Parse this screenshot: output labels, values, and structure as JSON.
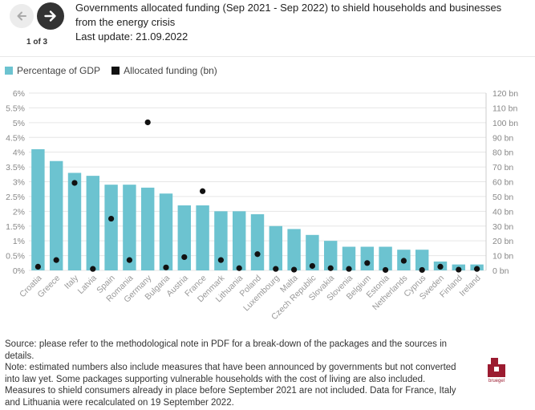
{
  "header": {
    "title_line1": "Governments allocated funding (Sep 2021 - Sep 2022) to shield households and businesses",
    "title_line2": "from the energy crisis",
    "last_update": "Last update: 21.09.2022",
    "pager": "1 of 3"
  },
  "legend": {
    "bar_label": "Percentage of GDP",
    "dot_label": "Allocated funding (bn)"
  },
  "colors": {
    "bar": "#6cc3d0",
    "dot": "#111111",
    "grid": "#e6e6e6",
    "logo": "#9b1b30"
  },
  "chart_data": {
    "type": "bar",
    "categories": [
      "Croatia",
      "Greece",
      "Italy",
      "Latvia",
      "Spain",
      "Romania",
      "Germany",
      "Bulgaria",
      "Austria",
      "France",
      "Denmark",
      "Lithuania",
      "Poland",
      "Luxembourg",
      "Malta",
      "Czech Republic",
      "Slovakia",
      "Slovenia",
      "Belgium",
      "Estonia",
      "Netherlands",
      "Cyprus",
      "Sweden",
      "Finland",
      "Ireland"
    ],
    "series": [
      {
        "name": "Percentage of GDP",
        "axis": "left",
        "values": [
          4.1,
          3.7,
          3.3,
          3.2,
          2.9,
          2.9,
          2.8,
          2.6,
          2.2,
          2.2,
          2.0,
          2.0,
          1.9,
          1.5,
          1.4,
          1.2,
          1.0,
          0.8,
          0.8,
          0.8,
          0.7,
          0.7,
          0.3,
          0.2,
          0.2
        ]
      },
      {
        "name": "Allocated funding (bn)",
        "axis": "right",
        "values": [
          2.5,
          7,
          59.2,
          1,
          35,
          7,
          100.2,
          2,
          9,
          53.6,
          7,
          1.5,
          11,
          1,
          0.5,
          3,
          1.5,
          1,
          5,
          0.3,
          6.5,
          0.3,
          2.5,
          0.5,
          1
        ]
      }
    ],
    "y_left_ticks": [
      "0%",
      "0.5%",
      "1%",
      "1.5%",
      "2%",
      "2.5%",
      "3%",
      "3.5%",
      "4%",
      "4.5%",
      "5%",
      "5.5%",
      "6%"
    ],
    "y_right_ticks": [
      "0 bn",
      "10 bn",
      "20 bn",
      "30 bn",
      "40 bn",
      "50 bn",
      "60 bn",
      "70 bn",
      "80 bn",
      "90 bn",
      "100 bn",
      "110 bn",
      "120 bn"
    ],
    "ylim_left": [
      0,
      6
    ],
    "ylim_right": [
      0,
      120
    ],
    "grid": true,
    "legend_position": "top-left"
  },
  "notes": {
    "source": "Source: please refer to the methodological note in PDF for a break-down of the packages and the sources in details.",
    "note": "Note: estimated numbers also include measures that have been announced by governments but not converted into law yet. Some packages supporting vulnerable households with the cost of living are also included. Measures to shield consumers already in place before September 2021 are not included. Data for France, Italy and Lithuania were recalculated on 19 September 2022."
  },
  "logo": {
    "text": "bruegel"
  }
}
